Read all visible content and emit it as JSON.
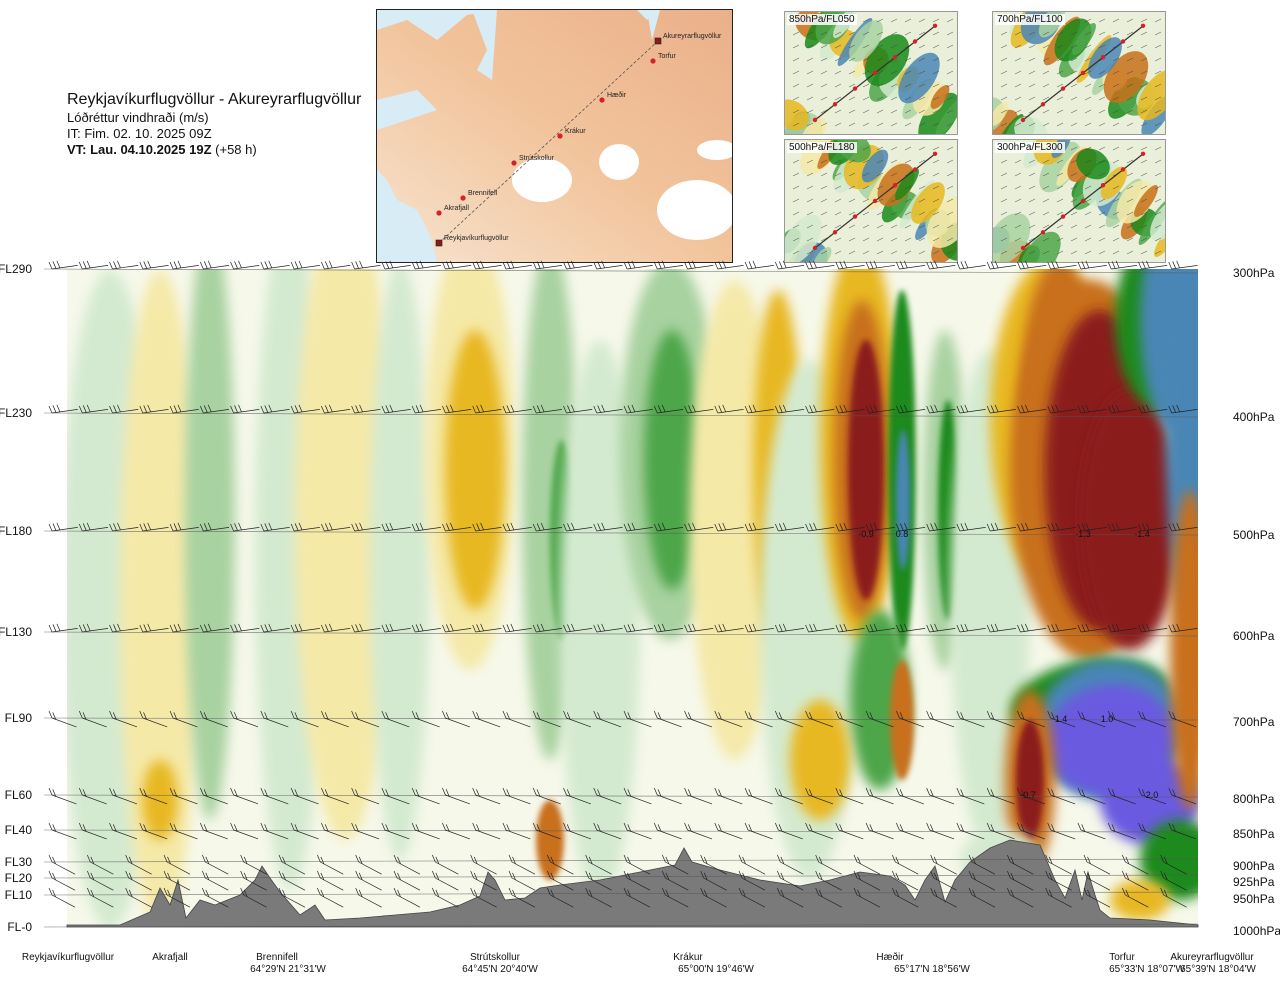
{
  "header": {
    "title": "Reykjavíkurflugvöllur - Akureyrarflugvöllur",
    "subtitle": "Lóðréttur vindhraði (m/s)",
    "issue_time": "IT: Fim. 02. 10. 2025 09Z",
    "valid_prefix": "VT: Lau. 04.10.2025 19Z",
    "valid_suffix": "(+58 h)"
  },
  "route_map": {
    "points": [
      {
        "name": "Reykjavíkurflugvöllur"
      },
      {
        "name": "Akrafjall"
      },
      {
        "name": "Brennifell"
      },
      {
        "name": "Strútskollur"
      },
      {
        "name": "Krákur"
      },
      {
        "name": "Hæðir"
      },
      {
        "name": "Torfur"
      },
      {
        "name": "Akureyrarflugvöllur"
      }
    ]
  },
  "mini_maps": [
    {
      "label": "850hPa/FL050"
    },
    {
      "label": "700hPa/FL100"
    },
    {
      "label": "500hPa/FL180"
    },
    {
      "label": "300hPa/FL300"
    }
  ],
  "chart_data": {
    "type": "heatmap",
    "title": "Lóðréttur vindhraði (m/s)",
    "x_locations": [
      {
        "name": "Reykjavíkurflugvöllur",
        "coord": ""
      },
      {
        "name": "Akrafjall",
        "coord": ""
      },
      {
        "name": "Brennifell",
        "coord": "64°29'N 21°31'W"
      },
      {
        "name": "Strútskollur",
        "coord": "64°45'N 20°40'W"
      },
      {
        "name": "Krákur",
        "coord": "65°00'N 19°46'W"
      },
      {
        "name": "Hæðir",
        "coord": "65°17'N 18°56'W"
      },
      {
        "name": "Torfur",
        "coord": "65°33'N 18°07'W"
      },
      {
        "name": "Akureyrarflugvöllur",
        "coord": "65°39'N 18°04'W"
      }
    ],
    "flight_levels": [
      "FL290",
      "FL230",
      "FL180",
      "FL130",
      "FL90",
      "FL60",
      "FL40",
      "FL30",
      "FL20",
      "FL10",
      "FL-0"
    ],
    "pressure_levels": [
      "300hPa",
      "400hPa",
      "500hPa",
      "600hPa",
      "700hPa",
      "800hPa",
      "850hPa",
      "900hPa",
      "925hPa",
      "950hPa",
      "1000hPa"
    ],
    "extrema": [
      {
        "value": "-0.9",
        "near": "Hæðir",
        "level": "500hPa"
      },
      {
        "value": "0.8",
        "near": "Hæðir",
        "level": "500hPa"
      },
      {
        "value": "-1.3",
        "near": "Torfur",
        "level": "500hPa"
      },
      {
        "value": "-1.4",
        "near": "Torfur",
        "level": "500hPa"
      },
      {
        "value": "1.4",
        "near": "Torfur",
        "level": "700hPa"
      },
      {
        "value": "1.0",
        "near": "Torfur",
        "level": "700hPa"
      },
      {
        "value": "-0.7",
        "near": "Torfur",
        "level": "800hPa"
      },
      {
        "value": "2.0",
        "near": "Akureyrarflugvöllur",
        "level": "800hPa"
      }
    ],
    "colors": {
      "strong_down": "#8b1a1a",
      "down": "#c8701a",
      "weak_down": "#e8b820",
      "very_weak_down": "#f5e9a8",
      "neutral": "#f6f8ea",
      "very_weak_up": "#d4ead0",
      "weak_up": "#a8d2a0",
      "up": "#4ea64a",
      "strong_up": "#1a8a1a",
      "stronger_up": "#4a86b6",
      "strongest_up": "#6a5ae0",
      "terrain": "#7a7a7a"
    }
  }
}
